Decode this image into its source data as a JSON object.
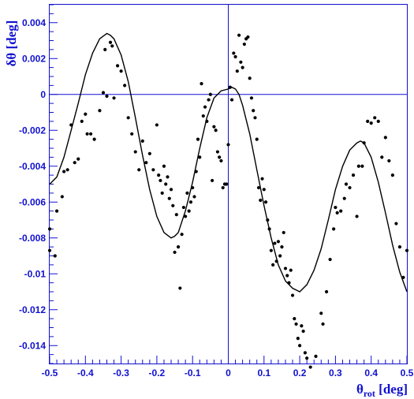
{
  "chart_data": {
    "type": "scatter",
    "title": "",
    "xlabel": "θrot [deg]",
    "ylabel": "δθ [deg]",
    "xlim": [
      -0.5,
      0.5
    ],
    "ylim": [
      -0.015,
      0.005
    ],
    "grid": false,
    "legend": "none",
    "xticks": [
      "-0.5",
      "-0.4",
      "-0.3",
      "-0.2",
      "-0.1",
      "0",
      "0.1",
      "0.2",
      "0.3",
      "0.4",
      "0.5"
    ],
    "yticks": [
      "-0.014",
      "-0.012",
      "-0.01",
      "-0.008",
      "-0.006",
      "-0.004",
      "-0.002",
      "0",
      "0.002",
      "0.004"
    ],
    "reference_lines": {
      "x": 0,
      "y": 0
    },
    "colors": {
      "axes": "#1010d0",
      "data": "#000000",
      "curve": "#000000"
    },
    "series": [
      {
        "type": "scatter",
        "points": [
          [
            -0.5,
            -0.0075
          ],
          [
            -0.5,
            -0.0087
          ],
          [
            -0.485,
            -0.009
          ],
          [
            -0.48,
            -0.0065
          ],
          [
            -0.465,
            -0.0057
          ],
          [
            -0.46,
            -0.0043
          ],
          [
            -0.45,
            -0.0042
          ],
          [
            -0.44,
            -0.0017
          ],
          [
            -0.43,
            -0.0038
          ],
          [
            -0.42,
            -0.0036
          ],
          [
            -0.41,
            -0.0015
          ],
          [
            -0.4,
            -0.0011
          ],
          [
            -0.395,
            -0.0022
          ],
          [
            -0.385,
            -0.0022
          ],
          [
            -0.375,
            -0.0025
          ],
          [
            -0.36,
            -0.0009
          ],
          [
            -0.35,
            0.0001
          ],
          [
            -0.345,
            0.0025
          ],
          [
            -0.34,
            -0.0001
          ],
          [
            -0.33,
            0.0029
          ],
          [
            -0.325,
            0.0027
          ],
          [
            -0.32,
            -0.0002
          ],
          [
            -0.31,
            0.0016
          ],
          [
            -0.3,
            0.0013
          ],
          [
            -0.29,
            0.0005
          ],
          [
            -0.28,
            -0.0013
          ],
          [
            -0.27,
            -0.0022
          ],
          [
            -0.26,
            -0.0032
          ],
          [
            -0.25,
            -0.0042
          ],
          [
            -0.24,
            -0.0026
          ],
          [
            -0.23,
            -0.0038
          ],
          [
            -0.22,
            -0.0033
          ],
          [
            -0.21,
            -0.0042
          ],
          [
            -0.2,
            -0.0017
          ],
          [
            -0.195,
            -0.0045
          ],
          [
            -0.19,
            -0.0048
          ],
          [
            -0.185,
            -0.0055
          ],
          [
            -0.18,
            -0.004
          ],
          [
            -0.175,
            -0.005
          ],
          [
            -0.17,
            -0.0046
          ],
          [
            -0.165,
            -0.0058
          ],
          [
            -0.16,
            -0.0053
          ],
          [
            -0.155,
            -0.0062
          ],
          [
            -0.15,
            -0.0088
          ],
          [
            -0.145,
            -0.0067
          ],
          [
            -0.14,
            -0.0085
          ],
          [
            -0.135,
            -0.0108
          ],
          [
            -0.13,
            -0.0078
          ],
          [
            -0.125,
            -0.0063
          ],
          [
            -0.12,
            -0.0068
          ],
          [
            -0.115,
            -0.0055
          ],
          [
            -0.11,
            -0.0065
          ],
          [
            -0.105,
            -0.006
          ],
          [
            -0.1,
            -0.0052
          ],
          [
            -0.095,
            -0.0057
          ],
          [
            -0.09,
            -0.0043
          ],
          [
            -0.085,
            -0.0025
          ],
          [
            -0.08,
            -0.0035
          ],
          [
            -0.075,
            0.0006
          ],
          [
            -0.07,
            -0.0012
          ],
          [
            -0.065,
            -0.0007
          ],
          [
            -0.06,
            -0.0015
          ],
          [
            -0.055,
            -0.0003
          ],
          [
            -0.05,
            0.0
          ],
          [
            -0.045,
            -0.0048
          ],
          [
            -0.04,
            -0.0018
          ],
          [
            -0.035,
            -0.002
          ],
          [
            -0.03,
            -0.0032
          ],
          [
            -0.025,
            -0.0035
          ],
          [
            -0.02,
            -0.0037
          ],
          [
            -0.015,
            -0.0052
          ],
          [
            -0.01,
            -0.005
          ],
          [
            -0.005,
            -0.005
          ],
          [
            0.0,
            -0.0028
          ],
          [
            0.005,
            0.0004
          ],
          [
            0.01,
            -0.0003
          ],
          [
            0.015,
            0.0023
          ],
          [
            0.02,
            0.0021
          ],
          [
            0.025,
            0.0013
          ],
          [
            0.03,
            0.0033
          ],
          [
            0.035,
            0.0018
          ],
          [
            0.04,
            0.0015
          ],
          [
            0.045,
            0.0028
          ],
          [
            0.05,
            0.0031
          ],
          [
            0.055,
            0.0032
          ],
          [
            0.06,
            0.0009
          ],
          [
            0.065,
            -0.0002
          ],
          [
            0.07,
            -0.0009
          ],
          [
            0.075,
            -0.0013
          ],
          [
            0.08,
            -0.0025
          ],
          [
            0.085,
            -0.0052
          ],
          [
            0.09,
            -0.0059
          ],
          [
            0.095,
            -0.0047
          ],
          [
            0.1,
            -0.0053
          ],
          [
            0.105,
            -0.006
          ],
          [
            0.11,
            -0.007
          ],
          [
            0.115,
            -0.0075
          ],
          [
            0.12,
            -0.0087
          ],
          [
            0.125,
            -0.0095
          ],
          [
            0.13,
            -0.0083
          ],
          [
            0.135,
            -0.0093
          ],
          [
            0.14,
            -0.0082
          ],
          [
            0.145,
            -0.009
          ],
          [
            0.15,
            -0.0085
          ],
          [
            0.155,
            -0.0077
          ],
          [
            0.16,
            -0.0097
          ],
          [
            0.165,
            -0.0101
          ],
          [
            0.17,
            -0.0105
          ],
          [
            0.175,
            -0.0098
          ],
          [
            0.18,
            -0.0112
          ],
          [
            0.185,
            -0.0125
          ],
          [
            0.19,
            -0.0128
          ],
          [
            0.195,
            -0.0136
          ],
          [
            0.2,
            -0.014
          ],
          [
            0.205,
            -0.0129
          ],
          [
            0.21,
            -0.0132
          ],
          [
            0.215,
            -0.0144
          ],
          [
            0.22,
            -0.0147
          ],
          [
            0.23,
            -0.0152
          ],
          [
            0.245,
            -0.0146
          ],
          [
            0.26,
            -0.0122
          ],
          [
            0.265,
            -0.0128
          ],
          [
            0.275,
            -0.011
          ],
          [
            0.285,
            -0.0092
          ],
          [
            0.295,
            -0.0075
          ],
          [
            0.3,
            -0.0063
          ],
          [
            0.305,
            -0.0066
          ],
          [
            0.315,
            -0.0065
          ],
          [
            0.325,
            -0.0058
          ],
          [
            0.33,
            -0.005
          ],
          [
            0.34,
            -0.0052
          ],
          [
            0.35,
            -0.0045
          ],
          [
            0.36,
            -0.0068
          ],
          [
            0.365,
            -0.004
          ],
          [
            0.375,
            -0.004
          ],
          [
            0.38,
            -0.0027
          ],
          [
            0.39,
            -0.0015
          ],
          [
            0.4,
            -0.0016
          ],
          [
            0.41,
            -0.0013
          ],
          [
            0.42,
            -0.0015
          ],
          [
            0.43,
            -0.0035
          ],
          [
            0.44,
            -0.0024
          ],
          [
            0.45,
            -0.0037
          ],
          [
            0.46,
            -0.0045
          ],
          [
            0.47,
            -0.0072
          ],
          [
            0.48,
            -0.0085
          ],
          [
            0.49,
            -0.0102
          ],
          [
            0.5,
            -0.0087
          ]
        ]
      },
      {
        "type": "line",
        "points": [
          [
            -0.5,
            -0.005
          ],
          [
            -0.48,
            -0.0046
          ],
          [
            -0.46,
            -0.0035
          ],
          [
            -0.44,
            -0.002
          ],
          [
            -0.42,
            -0.0005
          ],
          [
            -0.4,
            0.0011
          ],
          [
            -0.38,
            0.0023
          ],
          [
            -0.36,
            0.0031
          ],
          [
            -0.34,
            0.0034
          ],
          [
            -0.33,
            0.0033
          ],
          [
            -0.32,
            0.0031
          ],
          [
            -0.3,
            0.0022
          ],
          [
            -0.28,
            0.0007
          ],
          [
            -0.26,
            -0.0013
          ],
          [
            -0.24,
            -0.0034
          ],
          [
            -0.22,
            -0.0053
          ],
          [
            -0.2,
            -0.0068
          ],
          [
            -0.18,
            -0.0077
          ],
          [
            -0.16,
            -0.008
          ],
          [
            -0.15,
            -0.0079
          ],
          [
            -0.14,
            -0.0077
          ],
          [
            -0.12,
            -0.0065
          ],
          [
            -0.1,
            -0.0049
          ],
          [
            -0.08,
            -0.003
          ],
          [
            -0.06,
            -0.0013
          ],
          [
            -0.04,
            -0.0002
          ],
          [
            -0.02,
            0.0002
          ],
          [
            0.0,
            0.0003
          ],
          [
            0.01,
            0.0004
          ],
          [
            0.02,
            0.0003
          ],
          [
            0.03,
            0.0
          ],
          [
            0.04,
            -0.0006
          ],
          [
            0.06,
            -0.0022
          ],
          [
            0.08,
            -0.0042
          ],
          [
            0.1,
            -0.0062
          ],
          [
            0.12,
            -0.008
          ],
          [
            0.14,
            -0.0095
          ],
          [
            0.16,
            -0.0104
          ],
          [
            0.18,
            -0.0108
          ],
          [
            0.2,
            -0.011
          ],
          [
            0.22,
            -0.0106
          ],
          [
            0.24,
            -0.0098
          ],
          [
            0.26,
            -0.0086
          ],
          [
            0.28,
            -0.007
          ],
          [
            0.3,
            -0.0053
          ],
          [
            0.32,
            -0.004
          ],
          [
            0.34,
            -0.0031
          ],
          [
            0.36,
            -0.0027
          ],
          [
            0.37,
            -0.0026
          ],
          [
            0.38,
            -0.0027
          ],
          [
            0.4,
            -0.0035
          ],
          [
            0.42,
            -0.0049
          ],
          [
            0.44,
            -0.0066
          ],
          [
            0.46,
            -0.0084
          ],
          [
            0.48,
            -0.0099
          ],
          [
            0.5,
            -0.011
          ]
        ]
      }
    ]
  }
}
